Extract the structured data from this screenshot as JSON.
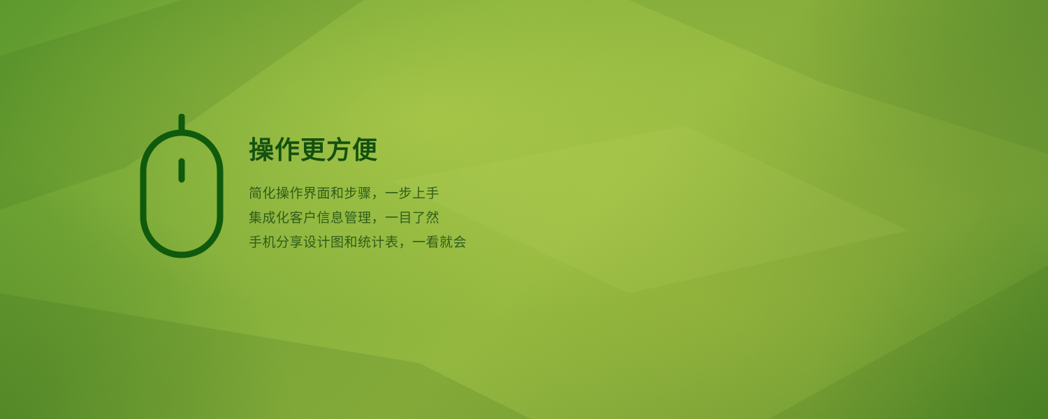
{
  "banner": {
    "icon": "mouse-icon",
    "title": "操作更方便",
    "lines": [
      "简化操作界面和步骤，一步上手",
      "集成化客户信息管理，一目了然",
      "手机分享设计图和统计表，一看就会"
    ],
    "colors": {
      "background": "#86b23a",
      "icon": "#0f5a0c",
      "title": "#14500f",
      "text": "#2f5d1a"
    }
  }
}
